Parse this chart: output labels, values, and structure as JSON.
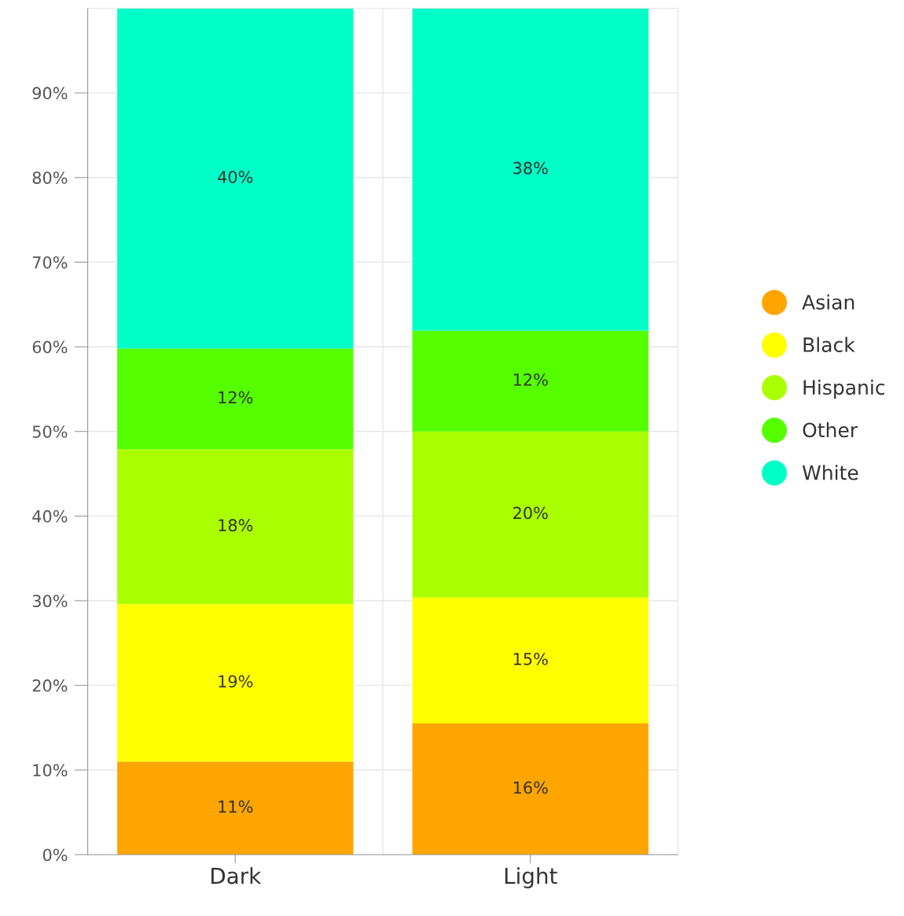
{
  "chart_data": {
    "type": "bar",
    "stacked": true,
    "categories": [
      "Dark",
      "Light"
    ],
    "series": [
      {
        "name": "Asian",
        "color": "#ffa500",
        "values": [
          11.0,
          15.5
        ],
        "value_labels": [
          "11%",
          "16%"
        ]
      },
      {
        "name": "Black",
        "color": "#ffff00",
        "values": [
          18.6,
          14.9
        ],
        "value_labels": [
          "19%",
          "15%"
        ]
      },
      {
        "name": "Hispanic",
        "color": "#aaff00",
        "values": [
          18.3,
          19.6
        ],
        "value_labels": [
          "18%",
          "20%"
        ]
      },
      {
        "name": "Other",
        "color": "#55ff00",
        "values": [
          11.9,
          11.9
        ],
        "value_labels": [
          "12%",
          "12%"
        ]
      },
      {
        "name": "White",
        "color": "#00ffc6",
        "values": [
          40.2,
          38.1
        ],
        "value_labels": [
          "40%",
          "38%"
        ]
      }
    ],
    "ylim": [
      0,
      100
    ],
    "yticks": [
      {
        "value": 0,
        "label": "0%"
      },
      {
        "value": 10,
        "label": "10%"
      },
      {
        "value": 20,
        "label": "20%"
      },
      {
        "value": 30,
        "label": "30%"
      },
      {
        "value": 40,
        "label": "40%"
      },
      {
        "value": 50,
        "label": "50%"
      },
      {
        "value": 60,
        "label": "60%"
      },
      {
        "value": 70,
        "label": "70%"
      },
      {
        "value": 80,
        "label": "80%"
      },
      {
        "value": 90,
        "label": "90%"
      }
    ],
    "grid": true,
    "legend": "right",
    "marker": "circle"
  }
}
